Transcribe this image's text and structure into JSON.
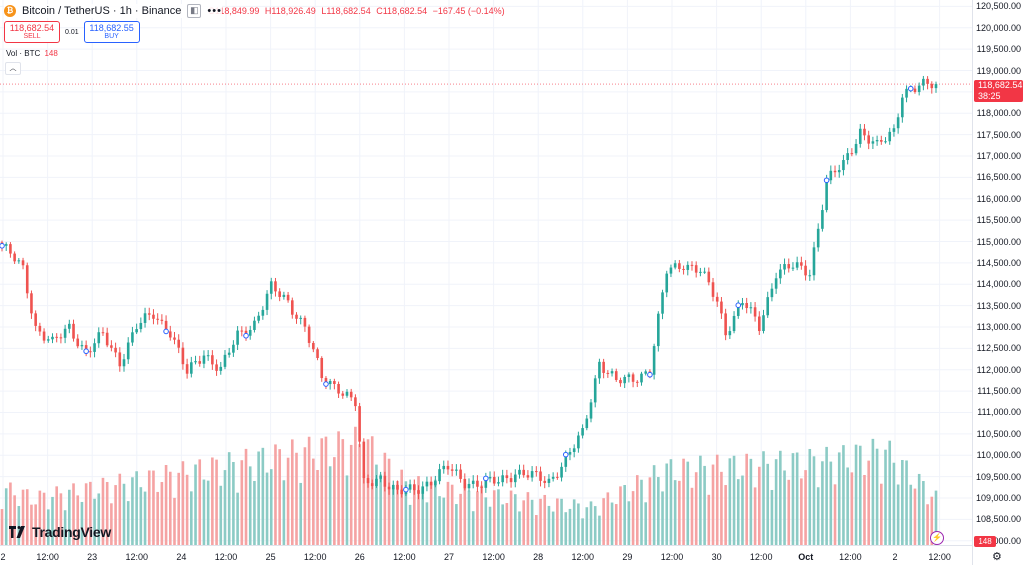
{
  "legend": {
    "symbol_icon": "bitcoin-icon",
    "title": "Bitcoin / TetherUS · 1h · Binance",
    "more": "•••",
    "ohlc": {
      "o": "O118,849.99",
      "h": "H118,926.49",
      "l": "L118,682.54",
      "c": "C118,682.54",
      "change": "−167.45 (−0.14%)"
    }
  },
  "trade": {
    "sell_price": "118,682.54",
    "sell_label": "SELL",
    "spread": "0.01",
    "buy_price": "118,682.55",
    "buy_label": "BUY"
  },
  "volume_legend": {
    "label": "Vol · BTC",
    "value": "148"
  },
  "collapse_icon": "chevron-up-icon",
  "price_axis": {
    "labels": [
      "120,500.00",
      "120,000.00",
      "119,500.00",
      "119,000.00",
      "118,500.00",
      "118,000.00",
      "117,500.00",
      "117,000.00",
      "116,500.00",
      "116,000.00",
      "115,500.00",
      "115,000.00",
      "114,500.00",
      "114,000.00",
      "113,500.00",
      "113,000.00",
      "112,500.00",
      "112,000.00",
      "111,500.00",
      "111,000.00",
      "110,500.00",
      "110,000.00",
      "109,500.00",
      "109,000.00",
      "108,500.00",
      "108,000.00"
    ],
    "current_price": "118,682.54",
    "countdown": "38:25",
    "volume_tag": "148"
  },
  "time_axis": {
    "labels": [
      "2",
      "12:00",
      "23",
      "12:00",
      "24",
      "12:00",
      "25",
      "12:00",
      "26",
      "12:00",
      "27",
      "12:00",
      "28",
      "12:00",
      "29",
      "12:00",
      "30",
      "12:00",
      "Oct",
      "12:00",
      "2",
      "12:00"
    ]
  },
  "logo_text": "TradingView",
  "colors": {
    "up": "#26a69a",
    "down": "#ef5350",
    "up_vol": "#8ccbc5",
    "down_vol": "#f5a3a3",
    "accent": "#2962ff"
  },
  "chart_data": {
    "type": "candlestick",
    "timeframe": "1h",
    "ylim": [
      107900,
      120650
    ],
    "anchors": [
      [
        0,
        114900
      ],
      [
        5,
        114350
      ],
      [
        8,
        113000
      ],
      [
        12,
        112600
      ],
      [
        16,
        113000
      ],
      [
        20,
        112400
      ],
      [
        24,
        112800
      ],
      [
        28,
        112200
      ],
      [
        32,
        113000
      ],
      [
        36,
        113300
      ],
      [
        40,
        112900
      ],
      [
        44,
        111900
      ],
      [
        48,
        112400
      ],
      [
        52,
        112000
      ],
      [
        56,
        112800
      ],
      [
        60,
        113100
      ],
      [
        64,
        113900
      ],
      [
        68,
        113600
      ],
      [
        72,
        113000
      ],
      [
        76,
        111800
      ],
      [
        80,
        111600
      ],
      [
        84,
        111200
      ],
      [
        86,
        109300
      ],
      [
        90,
        109500
      ],
      [
        94,
        109100
      ],
      [
        98,
        109200
      ],
      [
        102,
        109400
      ],
      [
        106,
        109700
      ],
      [
        110,
        109400
      ],
      [
        114,
        109300
      ],
      [
        118,
        109400
      ],
      [
        122,
        109600
      ],
      [
        126,
        109500
      ],
      [
        130,
        109400
      ],
      [
        134,
        109900
      ],
      [
        138,
        110500
      ],
      [
        142,
        112200
      ],
      [
        146,
        111700
      ],
      [
        150,
        111800
      ],
      [
        154,
        112000
      ],
      [
        158,
        114300
      ],
      [
        162,
        114500
      ],
      [
        166,
        114300
      ],
      [
        170,
        113600
      ],
      [
        172,
        112900
      ],
      [
        176,
        113600
      ],
      [
        180,
        113000
      ],
      [
        184,
        114300
      ],
      [
        188,
        114400
      ],
      [
        192,
        114300
      ],
      [
        196,
        116400
      ],
      [
        200,
        116800
      ],
      [
        204,
        117600
      ],
      [
        208,
        117200
      ],
      [
        212,
        117600
      ],
      [
        214,
        118500
      ],
      [
        218,
        118600
      ],
      [
        222,
        118700
      ]
    ],
    "volume_profile": [
      [
        0,
        0.12
      ],
      [
        8,
        0.1
      ],
      [
        86,
        0.22
      ],
      [
        96,
        0.13
      ],
      [
        140,
        0.08
      ],
      [
        158,
        0.16
      ],
      [
        196,
        0.18
      ],
      [
        210,
        0.2
      ],
      [
        222,
        0.1
      ]
    ],
    "markers_at": [
      0,
      20,
      39,
      58,
      77,
      96,
      115,
      134,
      154,
      175,
      196,
      216
    ]
  }
}
